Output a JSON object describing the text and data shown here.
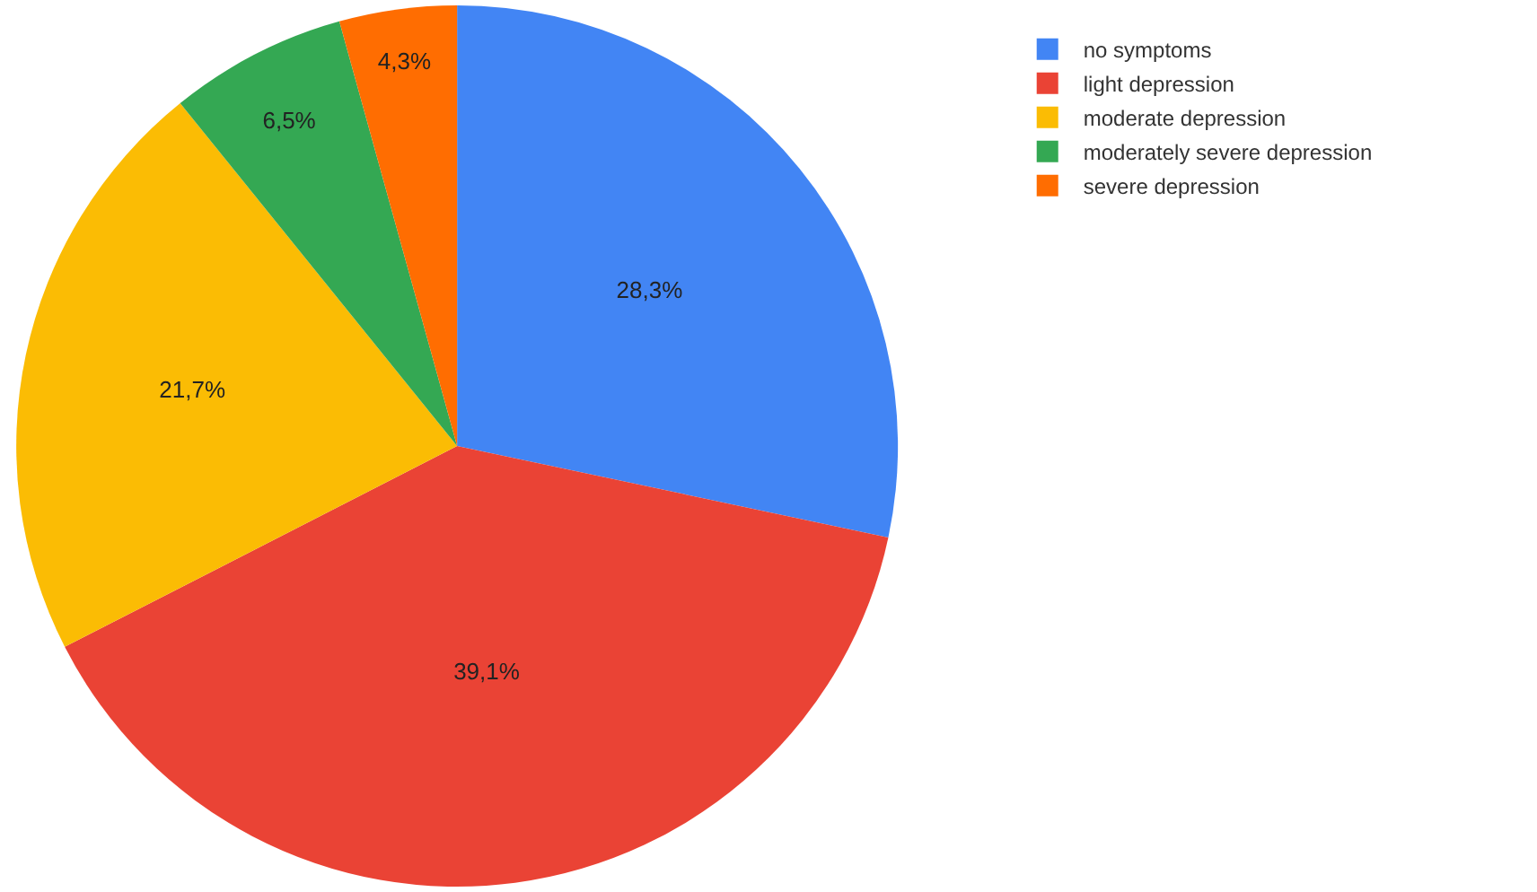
{
  "chart_data": {
    "type": "pie",
    "categories": [
      "no symptoms",
      "light depression",
      "moderate depression",
      "moderately severe depression",
      "severe depression"
    ],
    "values": [
      28.3,
      39.1,
      21.7,
      6.5,
      4.3
    ],
    "value_labels": [
      "28,3%",
      "39,1%",
      "21,7%",
      "6,5%",
      "4,3%"
    ],
    "colors": [
      "#4285f4",
      "#ea4335",
      "#fbbc04",
      "#34a853",
      "#ff6d01"
    ],
    "legend": "top right"
  }
}
